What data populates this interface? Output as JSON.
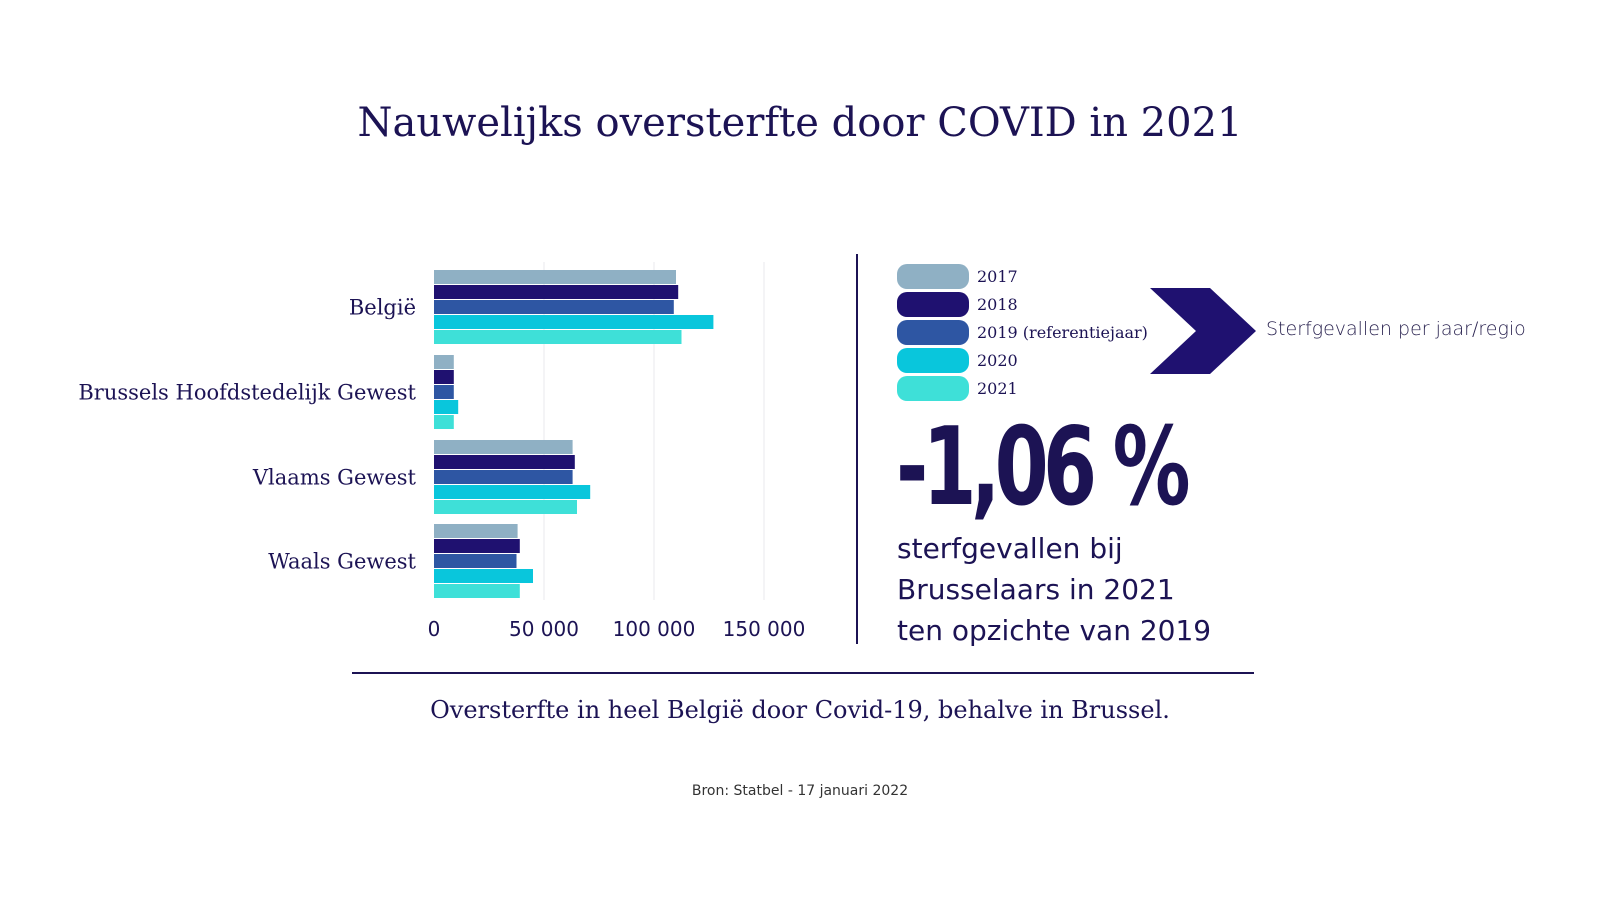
{
  "title": "Nauwelijks oversterfte door COVID in 2021",
  "colors": {
    "text": "#1c1354",
    "grid": "#e8e8ee",
    "series": [
      "#8fb0c4",
      "#1f1170",
      "#2e56a3",
      "#09c6dc",
      "#3ee0d8"
    ]
  },
  "chart_data": {
    "type": "bar",
    "orientation": "horizontal",
    "categories": [
      "België",
      "Brussels Hoofdstedelijk Gewest",
      "Vlaams Gewest",
      "Waals Gewest"
    ],
    "series": [
      {
        "name": "2017",
        "values": [
          110000,
          9000,
          63000,
          38000
        ]
      },
      {
        "name": "2018",
        "values": [
          111000,
          9000,
          64000,
          39000
        ]
      },
      {
        "name": "2019 (referentiejaar)",
        "values": [
          109000,
          9000,
          63000,
          37500
        ]
      },
      {
        "name": "2020",
        "values": [
          127000,
          11000,
          71000,
          45000
        ]
      },
      {
        "name": "2021",
        "values": [
          112500,
          9000,
          65000,
          39000
        ]
      }
    ],
    "xlim": [
      0,
      150000
    ],
    "xticks": [
      "0",
      "50 000",
      "100 000",
      "150 000"
    ],
    "grid": true,
    "legend_position": "right"
  },
  "legend_title": "Sterfgevallen per jaar/regio",
  "stat": {
    "value": "-1,06 %",
    "caption": [
      "sterfgevallen bij",
      "Brusselaars in 2021",
      "ten opzichte van 2019"
    ]
  },
  "footer": "Oversterfte in heel België door Covid-19, behalve in Brussel.",
  "source": "Bron: Statbel - 17 januari 2022"
}
